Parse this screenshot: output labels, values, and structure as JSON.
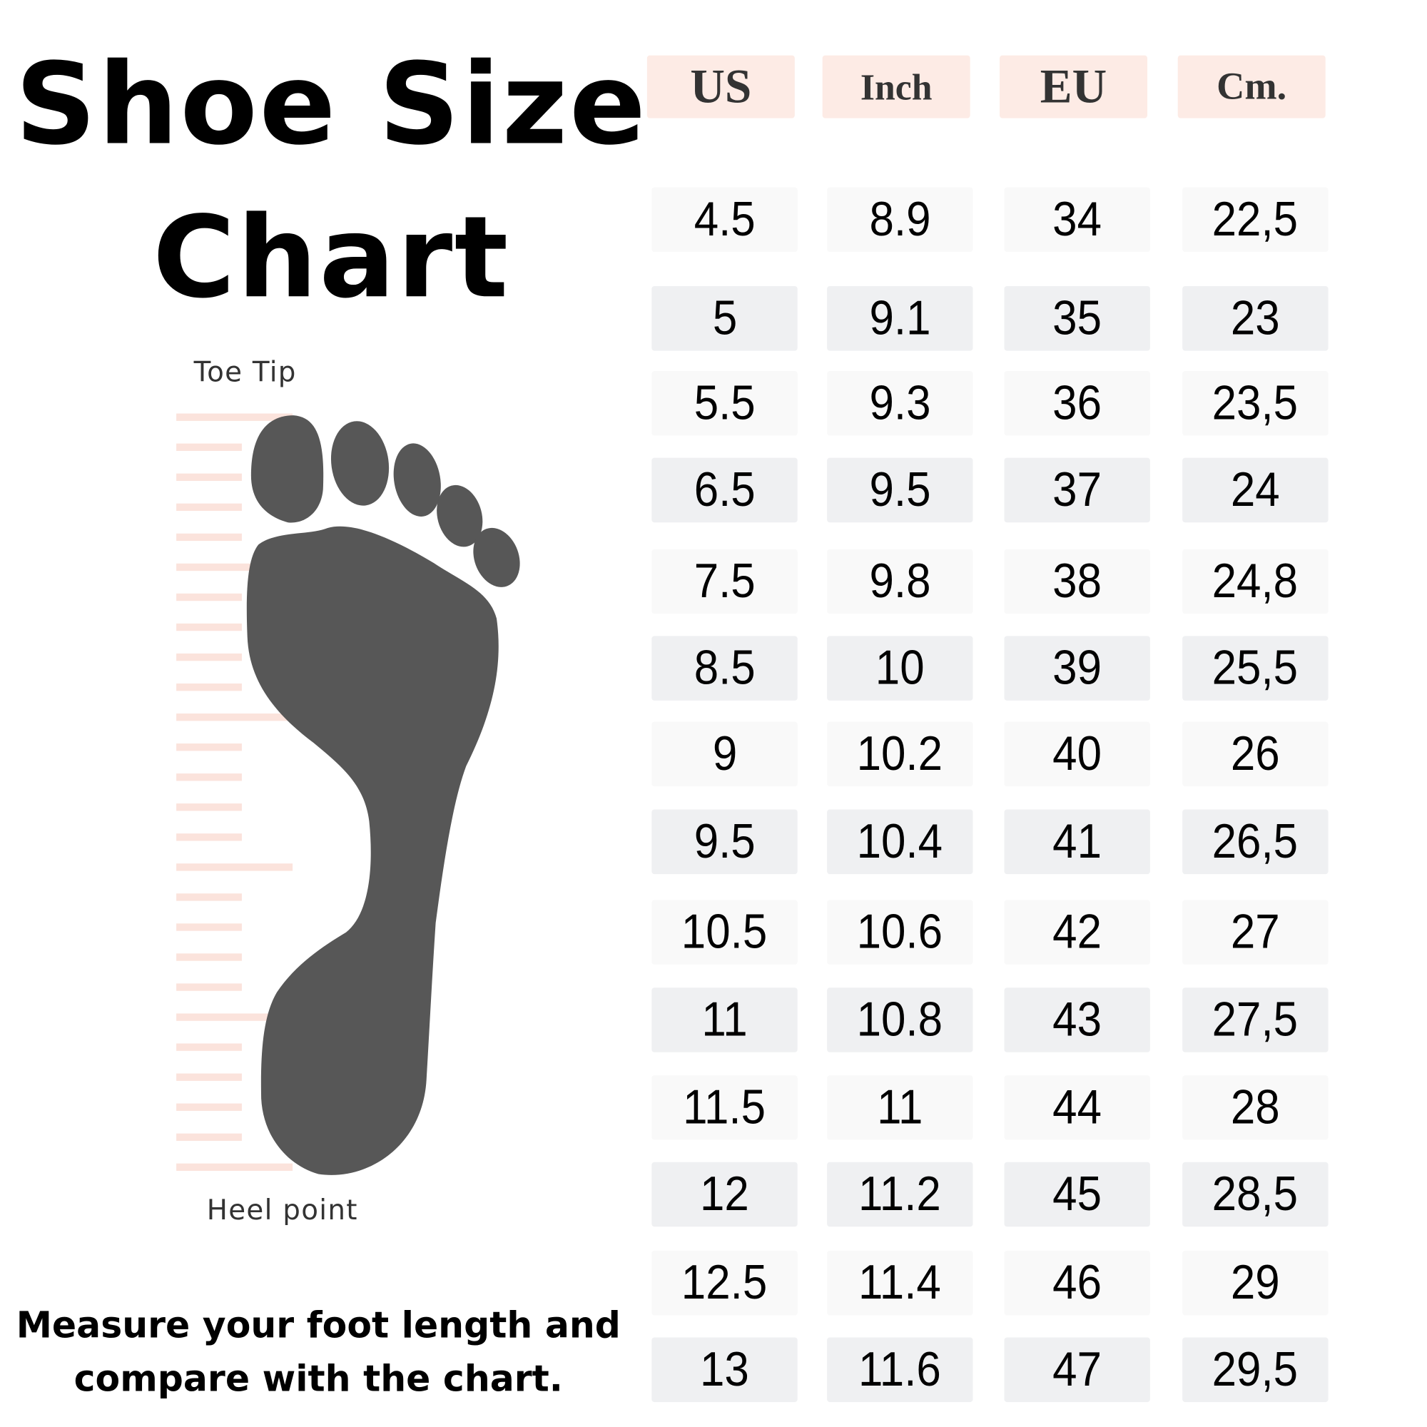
{
  "title": {
    "line1": "Shoe Size",
    "line2": "Chart"
  },
  "diagram": {
    "toe_label": "Toe Tip",
    "heel_label": "Heel point",
    "foot_color": "#575757",
    "ruler_color": "#fbe3dc"
  },
  "table": {
    "headers": [
      "US",
      "Inch",
      "EU",
      "Cm."
    ],
    "rows": [
      [
        "4.5",
        "8.9",
        "34",
        "22,5"
      ],
      [
        "5",
        "9.1",
        "35",
        "23"
      ],
      [
        "5.5",
        "9.3",
        "36",
        "23,5"
      ],
      [
        "6.5",
        "9.5",
        "37",
        "24"
      ],
      [
        "7.5",
        "9.8",
        "38",
        "24,8"
      ],
      [
        "8.5",
        "10",
        "39",
        "25,5"
      ],
      [
        "9",
        "10.2",
        "40",
        "26"
      ],
      [
        "9.5",
        "10.4",
        "41",
        "26,5"
      ],
      [
        "10.5",
        "10.6",
        "42",
        "27"
      ],
      [
        "11",
        "10.8",
        "43",
        "27,5"
      ],
      [
        "11.5",
        "11",
        "44",
        "28"
      ],
      [
        "12",
        "11.2",
        "45",
        "28,5"
      ],
      [
        "12.5",
        "11.4",
        "46",
        "29"
      ],
      [
        "13",
        "11.6",
        "47",
        "29,5"
      ]
    ]
  },
  "note": {
    "line1": "Measure your foot length and",
    "line2": "compare with the chart."
  },
  "colors": {
    "header_bg": "#fdebe5",
    "cell_bg_light": "#f9f9f9",
    "cell_bg_dark": "#eff0f2"
  }
}
